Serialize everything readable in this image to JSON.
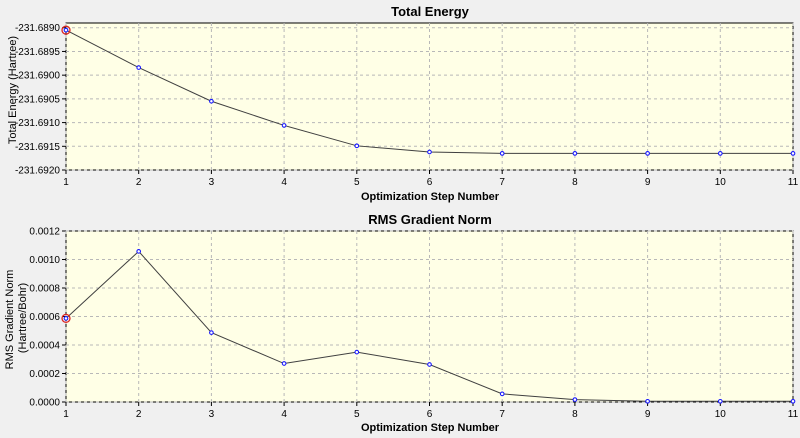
{
  "colors": {
    "background": "#f0f0f0",
    "plot_bg": "#ffffe6",
    "grid": "#b8b8b8",
    "line": "#404040",
    "marker": "#1a1aff",
    "highlight": "#dd2222",
    "text": "#000000"
  },
  "chart_data": [
    {
      "type": "line",
      "title": "Total Energy",
      "xlabel": "Optimization Step Number",
      "ylabel": "Total Energy (Hartree)",
      "x": [
        1,
        2,
        3,
        4,
        5,
        6,
        7,
        8,
        9,
        10,
        11
      ],
      "xticks": [
        "1",
        "2",
        "3",
        "4",
        "5",
        "6",
        "7",
        "8",
        "9",
        "10",
        "11"
      ],
      "xlim": [
        1,
        11
      ],
      "ylim": [
        -231.692,
        -231.6889
      ],
      "yticks": [
        -231.692,
        -231.6915,
        -231.691,
        -231.6905,
        -231.69,
        -231.6895,
        -231.689
      ],
      "ytick_labels": [
        "-231.6920",
        "-231.6915",
        "-231.6910",
        "-231.6905",
        "-231.6900",
        "-231.6895",
        "-231.6890"
      ],
      "values": [
        -231.68905,
        -231.68984,
        -231.69055,
        -231.69106,
        -231.69149,
        -231.69162,
        -231.69165,
        -231.69165,
        -231.69165,
        -231.69165,
        -231.69165
      ],
      "highlight_index": 0,
      "grid": true
    },
    {
      "type": "line",
      "title": "RMS Gradient Norm",
      "xlabel": "Optimization Step Number",
      "ylabel": "RMS Gradient Norm (Hartree/Bohr)",
      "ylabel_lines": [
        "RMS Gradient Norm",
        "(Hartree/Bohr)"
      ],
      "x": [
        1,
        2,
        3,
        4,
        5,
        6,
        7,
        8,
        9,
        10,
        11
      ],
      "xticks": [
        "1",
        "2",
        "3",
        "4",
        "5",
        "6",
        "7",
        "8",
        "9",
        "10",
        "11"
      ],
      "xlim": [
        1,
        11
      ],
      "ylim": [
        0,
        0.0012
      ],
      "yticks": [
        0,
        0.0002,
        0.0004,
        0.0006,
        0.0008,
        0.001,
        0.0012
      ],
      "ytick_labels": [
        "0.0000",
        "0.0002",
        "0.0004",
        "0.0006",
        "0.0008",
        "0.0010",
        "0.0012"
      ],
      "values": [
        0.000587,
        0.001057,
        0.000487,
        0.00027,
        0.00035,
        0.000263,
        5.7e-05,
        1.7e-05,
        5e-06,
        5e-06,
        5e-06
      ],
      "highlight_index": 0,
      "grid": true
    }
  ]
}
